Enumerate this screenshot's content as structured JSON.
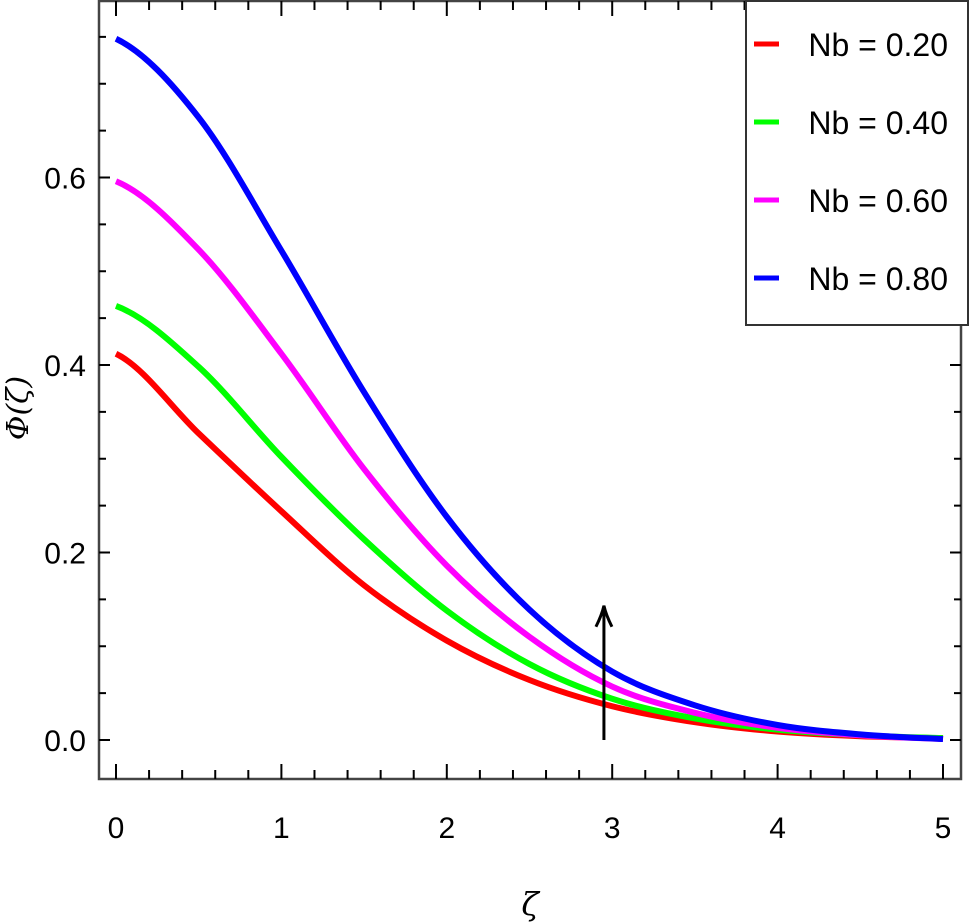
{
  "chart_data": {
    "type": "line",
    "title": "",
    "xlabel": "ζ",
    "ylabel": "Φ(ζ)",
    "xlim": [
      -0.1,
      5.1
    ],
    "ylim": [
      -0.04,
      0.79
    ],
    "xticks": [
      0,
      1,
      2,
      3,
      4,
      5
    ],
    "xtick_labels": [
      "0",
      "1",
      "2",
      "3",
      "4",
      "5"
    ],
    "yticks": [
      0.0,
      0.2,
      0.4,
      0.6
    ],
    "ytick_labels": [
      "0.0",
      "0.2",
      "0.4",
      "0.6"
    ],
    "grid": false,
    "legend_position": "upper right",
    "x": [
      0,
      0.5,
      1.0,
      1.5,
      2.0,
      2.5,
      3.0,
      3.5,
      4.0,
      4.5,
      5.0
    ],
    "series": [
      {
        "name": "Nb = 0.20",
        "color": "#ff0000",
        "values": [
          0.412,
          0.327,
          0.244,
          0.165,
          0.106,
          0.064,
          0.036,
          0.019,
          0.009,
          0.004,
          0.002
        ]
      },
      {
        "name": "Nb = 0.40",
        "color": "#00ff00",
        "values": [
          0.463,
          0.398,
          0.302,
          0.214,
          0.138,
          0.081,
          0.044,
          0.023,
          0.011,
          0.005,
          0.002
        ]
      },
      {
        "name": "Nb = 0.60",
        "color": "#ff00ff",
        "values": [
          0.596,
          0.523,
          0.412,
          0.289,
          0.186,
          0.11,
          0.057,
          0.029,
          0.013,
          0.005,
          0.001
        ]
      },
      {
        "name": "Nb = 0.80",
        "color": "#0000ff",
        "values": [
          0.748,
          0.664,
          0.522,
          0.371,
          0.238,
          0.139,
          0.073,
          0.037,
          0.016,
          0.006,
          0.001
        ]
      }
    ],
    "annotations": [
      {
        "type": "arrow",
        "x": 2.95,
        "y_from": 0.0,
        "y_to": 0.14,
        "meaning": "increasing Nb"
      }
    ]
  }
}
